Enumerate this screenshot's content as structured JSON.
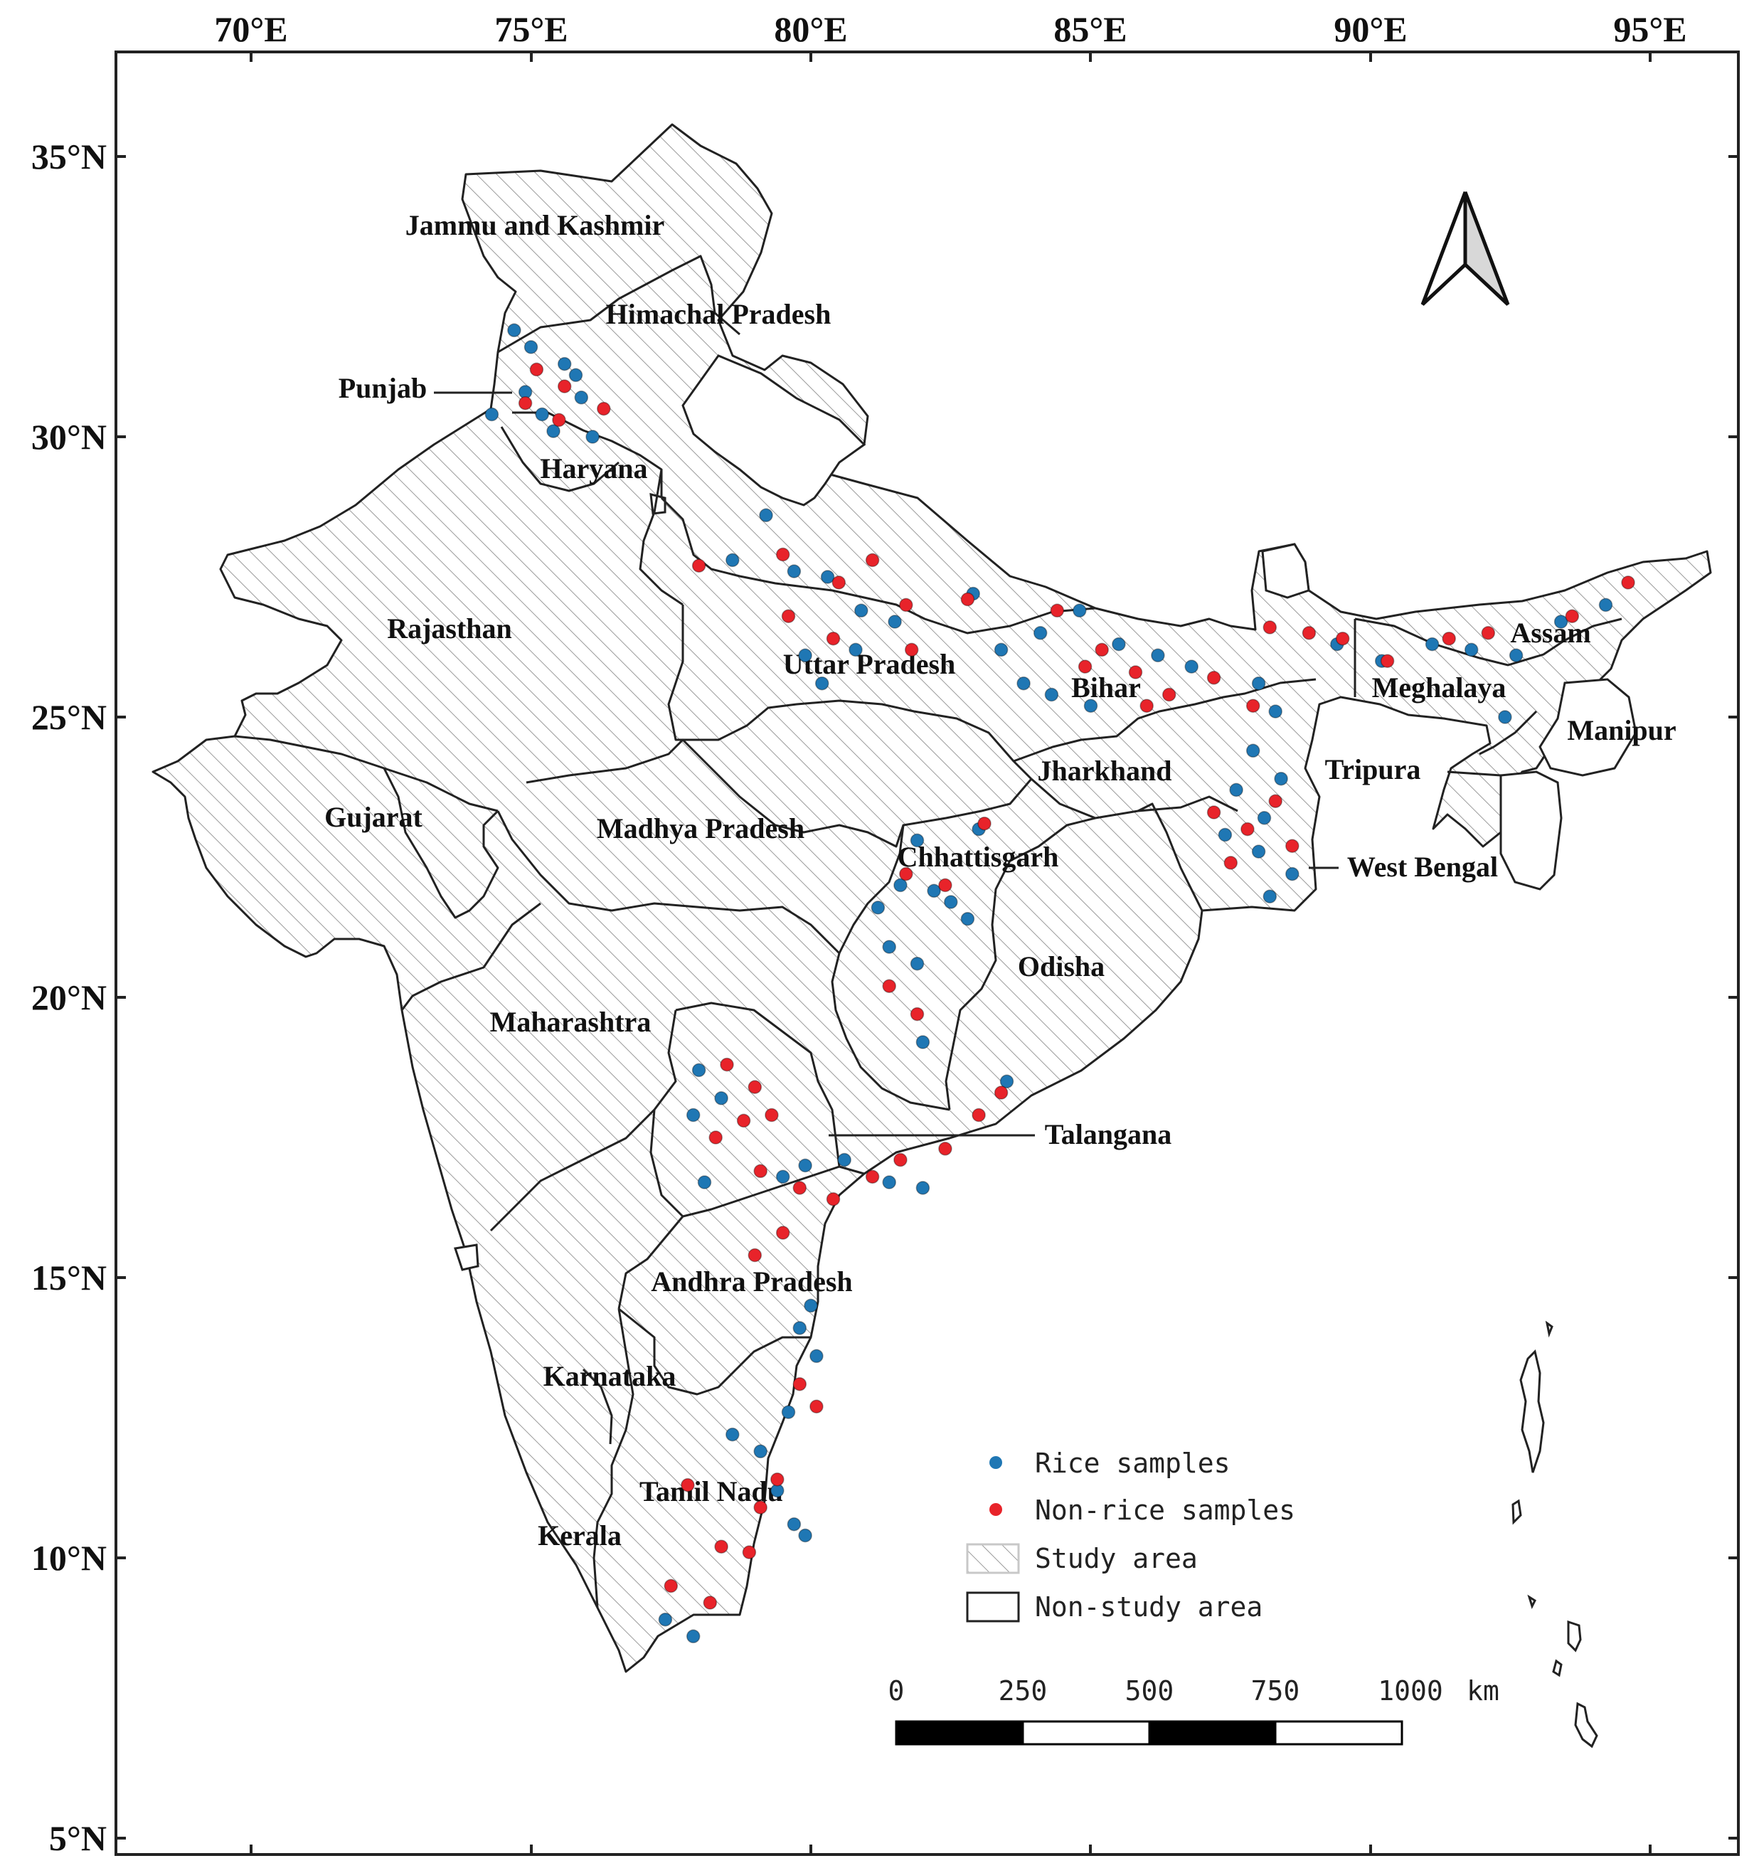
{
  "map": {
    "longitude_ticks": [
      "70°E",
      "75°E",
      "80°E",
      "85°E",
      "90°E",
      "95°E"
    ],
    "latitude_ticks": [
      "35°N",
      "30°N",
      "25°N",
      "20°N",
      "15°N",
      "10°N",
      "5°N"
    ],
    "region_labels": [
      "Jammu and Kashmir",
      "Himachal Pradesh",
      "Punjab",
      "Haryana",
      "Rajasthan",
      "Uttar Pradesh",
      "Bihar",
      "Gujarat",
      "Madhya Pradesh",
      "Jharkhand",
      "Chhattisgarh",
      "West Bengal",
      "Odisha",
      "Maharashtra",
      "Talangana",
      "Andhra Pradesh",
      "Karnataka",
      "Tamil Nadu",
      "Kerala",
      "Assam",
      "Meghalaya",
      "Manipur",
      "Tripura"
    ],
    "legend": {
      "rice": "Rice samples",
      "nonrice": "Non-rice samples",
      "study": "Study area",
      "nonstudy": "Non-study area"
    },
    "scale_bar": {
      "labels": [
        "0",
        "250",
        "500",
        "750",
        "1000"
      ],
      "unit": "km"
    },
    "colors": {
      "rice": "#1f77b4",
      "nonrice": "#e8232a",
      "border": "#222222",
      "hatch": "#9a9a9a"
    },
    "north_arrow": "north-arrow-icon",
    "samples": {
      "rice": [
        [
          74.7,
          31.9
        ],
        [
          75.0,
          31.6
        ],
        [
          75.6,
          31.3
        ],
        [
          74.9,
          30.8
        ],
        [
          75.2,
          30.4
        ],
        [
          75.9,
          30.7
        ],
        [
          74.3,
          30.4
        ],
        [
          75.4,
          30.1
        ],
        [
          76.1,
          30.0
        ],
        [
          75.8,
          31.1
        ],
        [
          79.2,
          28.6
        ],
        [
          78.6,
          27.8
        ],
        [
          79.7,
          27.6
        ],
        [
          80.3,
          27.5
        ],
        [
          80.9,
          26.9
        ],
        [
          81.5,
          26.7
        ],
        [
          82.9,
          27.2
        ],
        [
          83.4,
          26.2
        ],
        [
          84.1,
          26.5
        ],
        [
          84.8,
          26.9
        ],
        [
          85.5,
          26.3
        ],
        [
          86.2,
          26.1
        ],
        [
          86.8,
          25.9
        ],
        [
          84.3,
          25.4
        ],
        [
          85.0,
          25.2
        ],
        [
          83.8,
          25.6
        ],
        [
          80.8,
          26.2
        ],
        [
          80.2,
          25.6
        ],
        [
          79.9,
          26.1
        ],
        [
          88.0,
          25.6
        ],
        [
          88.3,
          25.1
        ],
        [
          87.9,
          24.4
        ],
        [
          88.4,
          23.9
        ],
        [
          87.6,
          23.7
        ],
        [
          88.1,
          23.2
        ],
        [
          87.4,
          22.9
        ],
        [
          88.0,
          22.6
        ],
        [
          88.6,
          22.2
        ],
        [
          88.2,
          21.8
        ],
        [
          89.4,
          26.3
        ],
        [
          90.2,
          26.0
        ],
        [
          91.1,
          26.3
        ],
        [
          91.8,
          26.2
        ],
        [
          92.6,
          26.1
        ],
        [
          93.4,
          26.7
        ],
        [
          94.2,
          27.0
        ],
        [
          92.4,
          25.0
        ],
        [
          81.9,
          22.8
        ],
        [
          81.6,
          22.0
        ],
        [
          81.2,
          21.6
        ],
        [
          82.2,
          21.9
        ],
        [
          82.8,
          21.4
        ],
        [
          81.4,
          20.9
        ],
        [
          81.9,
          20.6
        ],
        [
          82.5,
          21.7
        ],
        [
          83.0,
          23.0
        ],
        [
          82.0,
          19.2
        ],
        [
          78.0,
          18.7
        ],
        [
          78.4,
          18.2
        ],
        [
          77.9,
          17.9
        ],
        [
          78.1,
          16.7
        ],
        [
          79.5,
          16.8
        ],
        [
          79.9,
          17.0
        ],
        [
          80.6,
          17.1
        ],
        [
          81.4,
          16.7
        ],
        [
          82.0,
          16.6
        ],
        [
          83.5,
          18.5
        ],
        [
          80.0,
          14.5
        ],
        [
          79.8,
          14.1
        ],
        [
          80.1,
          13.6
        ],
        [
          79.6,
          12.6
        ],
        [
          79.1,
          11.9
        ],
        [
          79.4,
          11.2
        ],
        [
          79.7,
          10.6
        ],
        [
          79.9,
          10.4
        ],
        [
          78.6,
          12.2
        ],
        [
          77.4,
          8.9
        ],
        [
          77.9,
          8.6
        ]
      ],
      "nonrice": [
        [
          75.1,
          31.2
        ],
        [
          75.6,
          30.9
        ],
        [
          74.9,
          30.6
        ],
        [
          75.5,
          30.3
        ],
        [
          76.3,
          30.5
        ],
        [
          78.0,
          27.7
        ],
        [
          79.5,
          27.9
        ],
        [
          80.5,
          27.4
        ],
        [
          81.1,
          27.8
        ],
        [
          81.7,
          27.0
        ],
        [
          82.8,
          27.1
        ],
        [
          80.4,
          26.4
        ],
        [
          81.8,
          26.2
        ],
        [
          79.6,
          26.8
        ],
        [
          84.4,
          26.9
        ],
        [
          85.2,
          26.2
        ],
        [
          85.8,
          25.8
        ],
        [
          86.4,
          25.4
        ],
        [
          86.0,
          25.2
        ],
        [
          87.2,
          25.7
        ],
        [
          84.9,
          25.9
        ],
        [
          88.2,
          26.6
        ],
        [
          88.9,
          26.5
        ],
        [
          89.5,
          26.4
        ],
        [
          87.9,
          25.2
        ],
        [
          88.3,
          23.5
        ],
        [
          87.8,
          23.0
        ],
        [
          88.6,
          22.7
        ],
        [
          87.2,
          23.3
        ],
        [
          87.5,
          22.4
        ],
        [
          90.3,
          26.0
        ],
        [
          91.4,
          26.4
        ],
        [
          92.1,
          26.5
        ],
        [
          93.6,
          26.8
        ],
        [
          94.6,
          27.4
        ],
        [
          81.7,
          22.2
        ],
        [
          82.4,
          22.0
        ],
        [
          81.4,
          20.2
        ],
        [
          81.9,
          19.7
        ],
        [
          83.1,
          23.1
        ],
        [
          78.5,
          18.8
        ],
        [
          79.0,
          18.4
        ],
        [
          78.8,
          17.8
        ],
        [
          79.3,
          17.9
        ],
        [
          78.3,
          17.5
        ],
        [
          79.1,
          16.9
        ],
        [
          79.8,
          16.6
        ],
        [
          80.4,
          16.4
        ],
        [
          81.1,
          16.8
        ],
        [
          81.6,
          17.1
        ],
        [
          82.4,
          17.3
        ],
        [
          83.0,
          17.9
        ],
        [
          83.4,
          18.3
        ],
        [
          79.0,
          15.4
        ],
        [
          79.5,
          15.8
        ],
        [
          79.8,
          13.1
        ],
        [
          80.1,
          12.7
        ],
        [
          79.4,
          11.4
        ],
        [
          79.1,
          10.9
        ],
        [
          78.9,
          10.1
        ],
        [
          78.4,
          10.2
        ],
        [
          78.2,
          9.2
        ],
        [
          77.5,
          9.5
        ],
        [
          77.8,
          11.3
        ]
      ]
    }
  }
}
